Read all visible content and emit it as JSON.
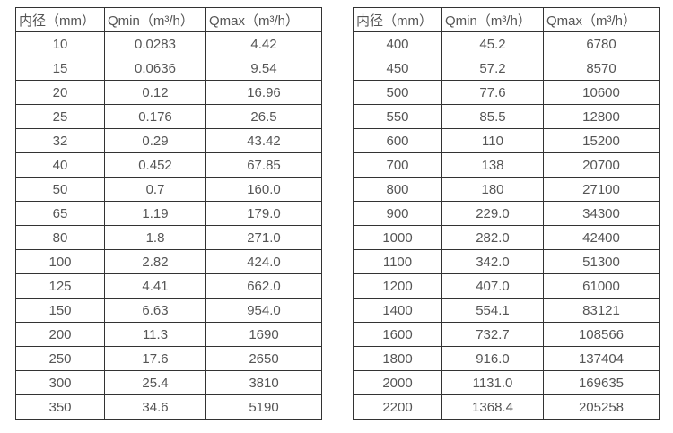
{
  "page": {
    "background_color": "#ffffff",
    "text_color": "#555555",
    "border_color": "#333333"
  },
  "tables": [
    {
      "name": "flow-table-left",
      "headers": [
        "内径（mm）",
        "Qmin（m³/h）",
        "Qmax（m³/h）"
      ],
      "rows": [
        [
          "10",
          "0.0283",
          "4.42"
        ],
        [
          "15",
          "0.0636",
          "9.54"
        ],
        [
          "20",
          "0.12",
          "16.96"
        ],
        [
          "25",
          "0.176",
          "26.5"
        ],
        [
          "32",
          "0.29",
          "43.42"
        ],
        [
          "40",
          "0.452",
          "67.85"
        ],
        [
          "50",
          "0.7",
          "160.0"
        ],
        [
          "65",
          "1.19",
          "179.0"
        ],
        [
          "80",
          "1.8",
          "271.0"
        ],
        [
          "100",
          "2.82",
          "424.0"
        ],
        [
          "125",
          "4.41",
          "662.0"
        ],
        [
          "150",
          "6.63",
          "954.0"
        ],
        [
          "200",
          "11.3",
          "1690"
        ],
        [
          "250",
          "17.6",
          "2650"
        ],
        [
          "300",
          "25.4",
          "3810"
        ],
        [
          "350",
          "34.6",
          "5190"
        ]
      ]
    },
    {
      "name": "flow-table-right",
      "headers": [
        "内径（mm）",
        "Qmin（m³/h）",
        "Qmax（m³/h）"
      ],
      "rows": [
        [
          "400",
          "45.2",
          "6780"
        ],
        [
          "450",
          "57.2",
          "8570"
        ],
        [
          "500",
          "77.6",
          "10600"
        ],
        [
          "550",
          "85.5",
          "12800"
        ],
        [
          "600",
          "110",
          "15200"
        ],
        [
          "700",
          "138",
          "20700"
        ],
        [
          "800",
          "180",
          "27100"
        ],
        [
          "900",
          "229.0",
          "34300"
        ],
        [
          "1000",
          "282.0",
          "42400"
        ],
        [
          "1100",
          "342.0",
          "51300"
        ],
        [
          "1200",
          "407.0",
          "61000"
        ],
        [
          "1400",
          "554.1",
          "83121"
        ],
        [
          "1600",
          "732.7",
          "108566"
        ],
        [
          "1800",
          "916.0",
          "137404"
        ],
        [
          "2000",
          "1131.0",
          "169635"
        ],
        [
          "2200",
          "1368.4",
          "205258"
        ]
      ]
    }
  ]
}
